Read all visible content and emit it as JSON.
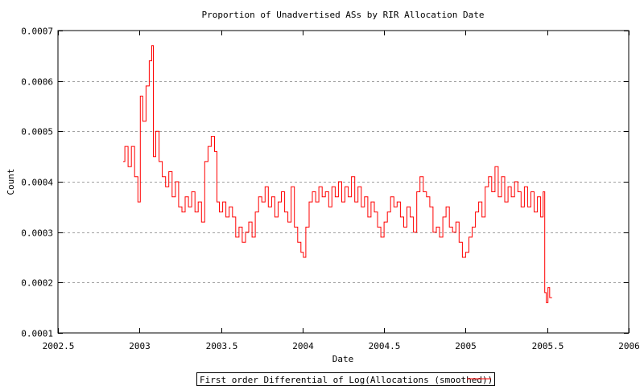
{
  "chart_data": {
    "type": "line",
    "style": "steps",
    "title": "Proportion of Unadvertised ASs by RIR Allocation Date",
    "xlabel": "Date",
    "ylabel": "Count",
    "xlim": [
      2002.5,
      2006
    ],
    "ylim": [
      0.0001,
      0.0007
    ],
    "xticks": [
      "2002.5",
      "2003",
      "2003.5",
      "2004",
      "2004.5",
      "2005",
      "2005.5",
      "2006"
    ],
    "yticks": [
      "0.0001",
      "0.0002",
      "0.0003",
      "0.0004",
      "0.0005",
      "0.0006",
      "0.0007"
    ],
    "grid": {
      "horizontal": true,
      "vertical": false
    },
    "legend_placement": "bottom-center",
    "series": [
      {
        "name": "First order Differential of Log(Allocations (smoothed))",
        "color": "#ff0000",
        "x": [
          2002.9,
          2002.92,
          2002.94,
          2002.96,
          2002.98,
          2003.0,
          2003.01,
          2003.03,
          2003.05,
          2003.07,
          2003.08,
          2003.09,
          2003.11,
          2003.13,
          2003.15,
          2003.17,
          2003.19,
          2003.21,
          2003.23,
          2003.25,
          2003.27,
          2003.29,
          2003.31,
          2003.33,
          2003.35,
          2003.37,
          2003.39,
          2003.41,
          2003.43,
          2003.45,
          2003.47,
          2003.48,
          2003.5,
          2003.52,
          2003.54,
          2003.56,
          2003.58,
          2003.6,
          2003.62,
          2003.64,
          2003.66,
          2003.68,
          2003.7,
          2003.72,
          2003.74,
          2003.76,
          2003.78,
          2003.8,
          2003.82,
          2003.84,
          2003.86,
          2003.88,
          2003.9,
          2003.92,
          2003.94,
          2003.96,
          2003.98,
          2004.0,
          2004.01,
          2004.03,
          2004.05,
          2004.07,
          2004.09,
          2004.11,
          2004.13,
          2004.15,
          2004.17,
          2004.19,
          2004.21,
          2004.23,
          2004.25,
          2004.27,
          2004.29,
          2004.31,
          2004.33,
          2004.35,
          2004.37,
          2004.39,
          2004.41,
          2004.43,
          2004.45,
          2004.47,
          2004.49,
          2004.51,
          2004.53,
          2004.55,
          2004.57,
          2004.59,
          2004.61,
          2004.63,
          2004.65,
          2004.67,
          2004.69,
          2004.71,
          2004.73,
          2004.75,
          2004.77,
          2004.79,
          2004.81,
          2004.83,
          2004.85,
          2004.87,
          2004.89,
          2004.91,
          2004.93,
          2004.95,
          2004.97,
          2004.99,
          2005.01,
          2005.03,
          2005.05,
          2005.07,
          2005.09,
          2005.11,
          2005.13,
          2005.15,
          2005.17,
          2005.19,
          2005.21,
          2005.23,
          2005.25,
          2005.27,
          2005.29,
          2005.31,
          2005.33,
          2005.35,
          2005.37,
          2005.39,
          2005.41,
          2005.43,
          2005.45,
          2005.47,
          2005.48,
          2005.49,
          2005.5,
          2005.51,
          2005.52,
          2005.53
        ],
        "y": [
          0.00044,
          0.00047,
          0.00043,
          0.00047,
          0.00041,
          0.00036,
          0.00057,
          0.00052,
          0.00059,
          0.00064,
          0.00067,
          0.00045,
          0.0005,
          0.00044,
          0.00041,
          0.00039,
          0.00042,
          0.00037,
          0.0004,
          0.00035,
          0.00034,
          0.00037,
          0.00035,
          0.00038,
          0.00034,
          0.00036,
          0.00032,
          0.00044,
          0.00047,
          0.00049,
          0.00046,
          0.00036,
          0.00034,
          0.00036,
          0.00033,
          0.00035,
          0.00033,
          0.00029,
          0.00031,
          0.00028,
          0.0003,
          0.00032,
          0.00029,
          0.00034,
          0.00037,
          0.00036,
          0.00039,
          0.00035,
          0.00037,
          0.00033,
          0.00036,
          0.00038,
          0.00034,
          0.00032,
          0.00039,
          0.00031,
          0.00028,
          0.00026,
          0.00025,
          0.00031,
          0.00036,
          0.00038,
          0.00036,
          0.00039,
          0.00037,
          0.00038,
          0.00035,
          0.00039,
          0.00037,
          0.0004,
          0.00036,
          0.00039,
          0.00037,
          0.00041,
          0.00036,
          0.00039,
          0.00035,
          0.00037,
          0.00033,
          0.00036,
          0.00034,
          0.00031,
          0.00029,
          0.00032,
          0.00034,
          0.00037,
          0.00035,
          0.00036,
          0.00033,
          0.00031,
          0.00035,
          0.00033,
          0.0003,
          0.00038,
          0.00041,
          0.00038,
          0.00037,
          0.00035,
          0.0003,
          0.00031,
          0.00029,
          0.00033,
          0.00035,
          0.00031,
          0.0003,
          0.00032,
          0.00028,
          0.00025,
          0.00026,
          0.00029,
          0.00031,
          0.00034,
          0.00036,
          0.00033,
          0.00039,
          0.00041,
          0.00038,
          0.00043,
          0.00037,
          0.00041,
          0.00036,
          0.00039,
          0.00037,
          0.0004,
          0.00038,
          0.00035,
          0.00039,
          0.00035,
          0.00038,
          0.00034,
          0.00037,
          0.00033,
          0.00038,
          0.00018,
          0.00016,
          0.00019,
          0.00017,
          0.00017
        ]
      }
    ]
  }
}
